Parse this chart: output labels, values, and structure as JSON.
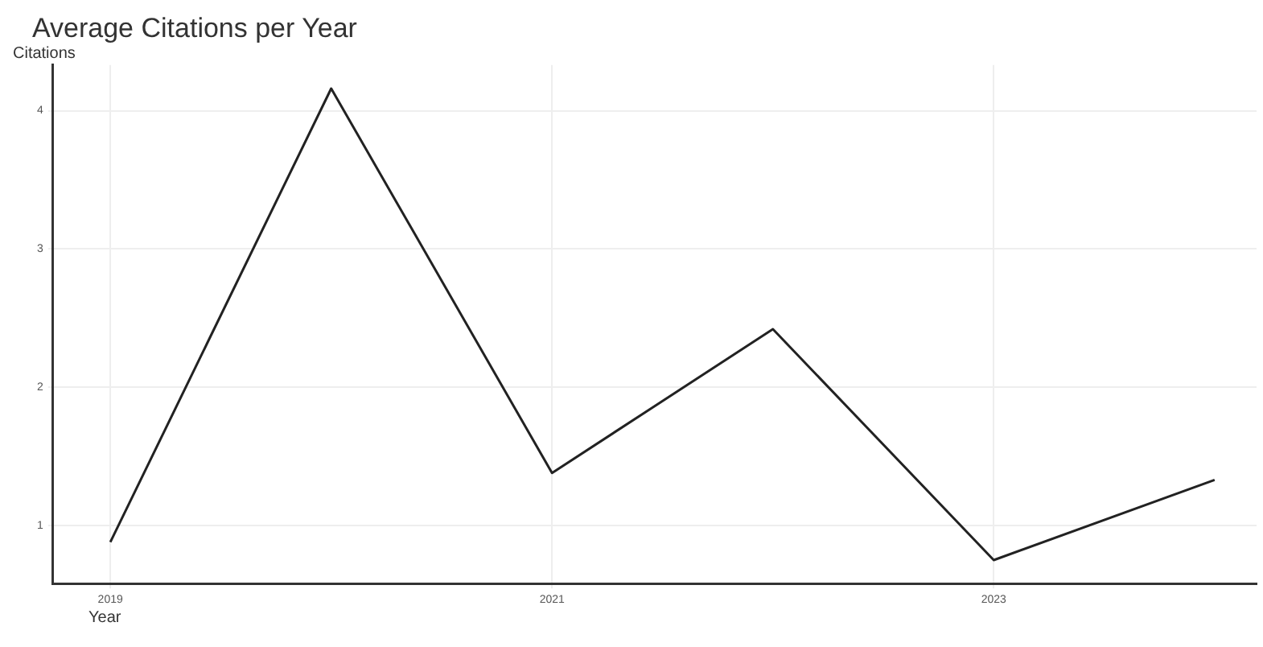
{
  "chart_data": {
    "type": "line",
    "title": "Average Citations per Year",
    "xlabel": "Year",
    "ylabel": "Citations",
    "x": [
      2019,
      2020,
      2021,
      2022,
      2023,
      2024
    ],
    "series": [
      {
        "color": "#222222",
        "values": [
          0.88,
          4.16,
          1.38,
          2.42,
          0.75,
          1.33
        ]
      }
    ],
    "xlim": [
      2018.74,
      2024.19
    ],
    "xticks": [
      2019,
      2021,
      2023
    ],
    "ylim": [
      0.58,
      4.33
    ],
    "yticks": [
      1,
      2,
      3,
      4
    ],
    "grid": true,
    "legend": false,
    "marker": "none",
    "line_style": "solid"
  }
}
